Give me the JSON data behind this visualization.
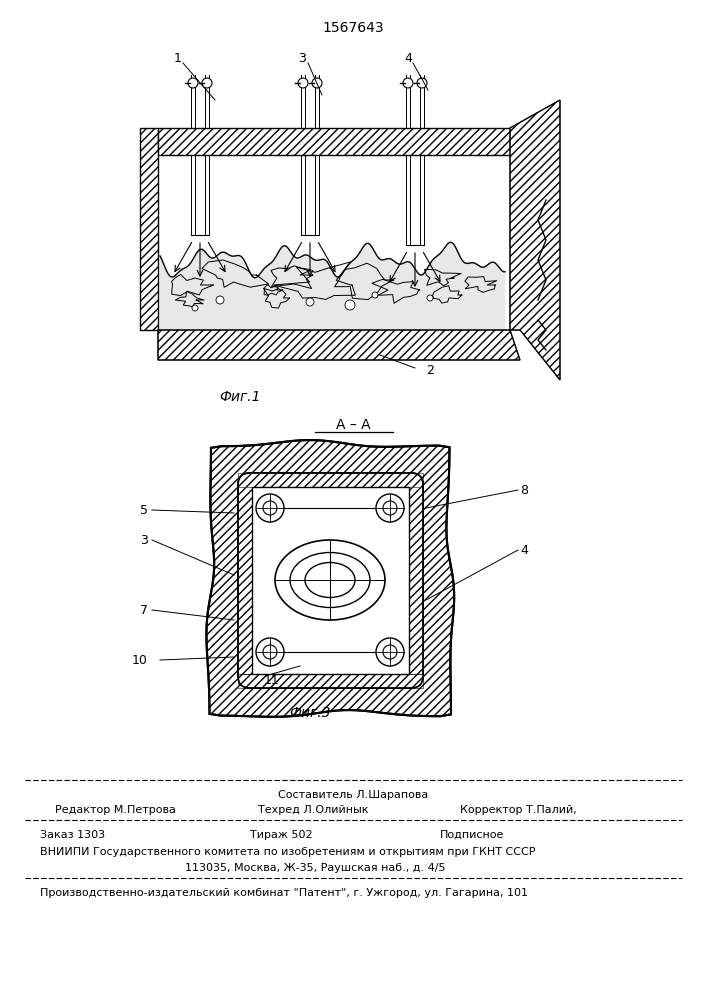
{
  "patent_number": "1567643",
  "bg_color": "#ffffff",
  "line_color": "#000000",
  "fig1_caption": "Фиг.1",
  "fig3_caption": "Фиг.3",
  "section_label": "А – А",
  "footer_line1_left": "Редактор М.Петрова",
  "footer_line1_center_top": "Составитель Л.Шарапова",
  "footer_line1_center_bot": "Техред Л.Олийнык",
  "footer_line1_right": "Корректор Т.Палий,",
  "footer_order": "Заказ 1303",
  "footer_tirazh": "Тираж 502",
  "footer_podpisnoe": "Подписное",
  "footer_vniip": "ВНИИПИ Государственного комитета по изобретениям и открытиям при ГКНТ СССР",
  "footer_address": "113035, Москва, Ж-35, Раушская наб., д. 4/5",
  "footer_kombinat": "Производственно-издательский комбинат \"Патент\", г. Ужгород, ул. Гагарина, 101"
}
